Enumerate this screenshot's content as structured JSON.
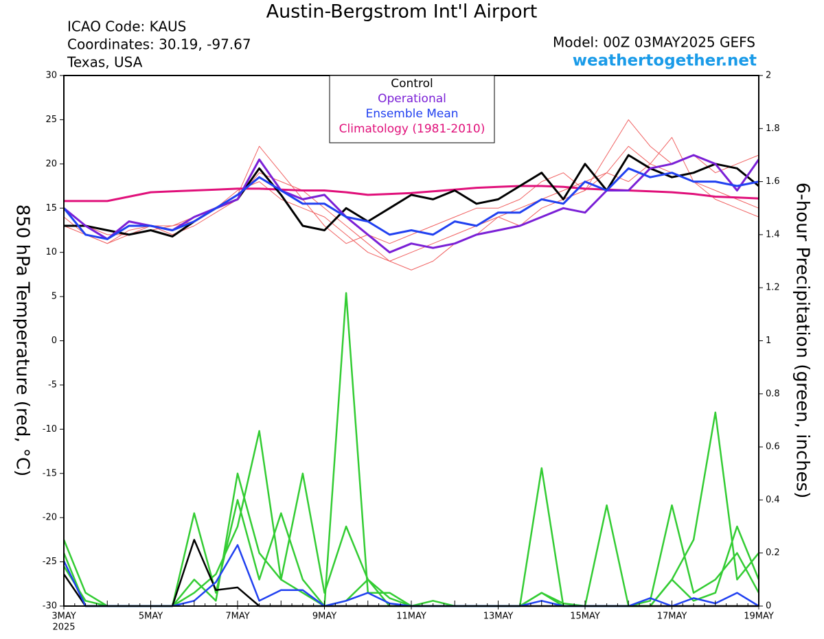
{
  "header": {
    "title": "Austin-Bergstrom Int'l Airport",
    "icao": "ICAO Code: KAUS",
    "coordinates": "Coordinates: 30.19, -97.67",
    "location": "Texas, USA",
    "model": "Model: 00Z 03MAY2025 GEFS",
    "site": "weathertogether.net"
  },
  "chart_data": {
    "type": "line",
    "ylabel": "850 hPa Temperature (red, °C)",
    "y2label": "6-hour Precipitation (green, inches)",
    "x": [
      0,
      0.5,
      1,
      1.5,
      2,
      2.5,
      3,
      3.5,
      4,
      4.5,
      5,
      5.5,
      6,
      6.5,
      7,
      7.5,
      8,
      8.5,
      9,
      9.5,
      10,
      10.5,
      11,
      11.5,
      12,
      12.5,
      13,
      13.5,
      14,
      14.5,
      15,
      15.5,
      16
    ],
    "xlim": [
      0,
      16
    ],
    "xticks": [
      {
        "value": 0,
        "label": "3MAY"
      },
      {
        "value": 2,
        "label": "5MAY"
      },
      {
        "value": 4,
        "label": "7MAY"
      },
      {
        "value": 6,
        "label": "9MAY"
      },
      {
        "value": 8,
        "label": "11MAY"
      },
      {
        "value": 10,
        "label": "13MAY"
      },
      {
        "value": 12,
        "label": "15MAY"
      },
      {
        "value": 14,
        "label": "17MAY"
      },
      {
        "value": 16,
        "label": "19MAY"
      }
    ],
    "x_sublabel": "2025",
    "ylim": [
      -30,
      30
    ],
    "yticks": [
      -30,
      -25,
      -20,
      -15,
      -10,
      -5,
      0,
      5,
      10,
      15,
      20,
      25,
      30
    ],
    "y2lim": [
      0,
      2
    ],
    "y2ticks": [
      0,
      0.2,
      0.4,
      0.6,
      0.8,
      1,
      1.2,
      1.4,
      1.6,
      1.8,
      2
    ],
    "series": [
      {
        "color": "#f06060",
        "axis": "y",
        "values": [
          14,
          12,
          11,
          12.5,
          13,
          12,
          13,
          14.5,
          16,
          19,
          18,
          17,
          15,
          13,
          11,
          9,
          10,
          11,
          12,
          13,
          14,
          15,
          16,
          17,
          18,
          19,
          22,
          20,
          19,
          18,
          17,
          16,
          15
        ]
      },
      {
        "color": "#f06060",
        "axis": "y",
        "values": [
          15,
          13,
          12,
          12,
          12.5,
          13,
          14,
          15,
          17,
          18,
          16,
          15,
          14,
          12,
          10,
          9,
          8,
          9,
          11,
          12,
          14,
          13,
          15,
          16,
          17,
          19,
          18,
          20,
          23,
          18,
          16,
          15,
          14
        ]
      },
      {
        "color": "#f06060",
        "axis": "y",
        "values": [
          13,
          12,
          11,
          12,
          13,
          13,
          13.5,
          15,
          16.5,
          22,
          19,
          16,
          13,
          11,
          12,
          11,
          12,
          13,
          14,
          15,
          15,
          16,
          18,
          19,
          17,
          21,
          25,
          22,
          20,
          21,
          19,
          20,
          21
        ]
      },
      {
        "color": "#33cc33",
        "axis": "y2",
        "values": [
          0.25,
          0.05,
          0,
          0,
          0,
          0,
          0.05,
          0.12,
          0.3,
          0.66,
          0.1,
          0.05,
          0,
          0.02,
          0.1,
          0.03,
          0,
          0,
          0,
          0,
          0,
          0,
          0.05,
          0.01,
          0,
          0,
          0,
          0,
          0.1,
          0.02,
          0.05,
          0.3,
          0.1
        ]
      },
      {
        "color": "#33cc33",
        "axis": "y2",
        "values": [
          0.2,
          0,
          0,
          0,
          0,
          0,
          0.35,
          0.05,
          0.4,
          0.1,
          0.35,
          0.1,
          0,
          1.18,
          0.05,
          0.05,
          0,
          0.02,
          0,
          0,
          0,
          0,
          0.52,
          0,
          0,
          0,
          0,
          0.02,
          0.38,
          0.05,
          0.1,
          0.2,
          0.05
        ]
      },
      {
        "color": "#33cc33",
        "axis": "y2",
        "values": [
          0.15,
          0.02,
          0,
          0,
          0,
          0,
          0.1,
          0.02,
          0.5,
          0.2,
          0.1,
          0.5,
          0.05,
          0.3,
          0.1,
          0,
          0,
          0,
          0,
          0,
          0,
          0,
          0.05,
          0,
          0,
          0.38,
          0,
          0,
          0.1,
          0.25,
          0.73,
          0.1,
          0.2
        ]
      },
      {
        "color": "#000000",
        "axis": "y2",
        "values": [
          0.12,
          0,
          0,
          0,
          0,
          0,
          0.25,
          0.06,
          0.07,
          0,
          0,
          0,
          0,
          0,
          0,
          0,
          0,
          0,
          0,
          0,
          0,
          0,
          0,
          0,
          0,
          0,
          0,
          0,
          0,
          0,
          0,
          0,
          0
        ]
      },
      {
        "color": "#2040f0",
        "axis": "y2",
        "values": [
          0.17,
          0,
          0,
          0,
          0,
          0,
          0.02,
          0.09,
          0.23,
          0.02,
          0.06,
          0.06,
          0,
          0.02,
          0.05,
          0.01,
          0,
          0,
          0,
          0,
          0,
          0,
          0.02,
          0,
          0,
          0,
          0,
          0.03,
          0,
          0.03,
          0.01,
          0.05,
          0
        ]
      },
      {
        "name": "Climatology (1981-2010)",
        "color": "#e0107a",
        "axis": "y",
        "values": [
          15.8,
          15.8,
          15.8,
          16.3,
          16.8,
          16.9,
          17,
          17.1,
          17.2,
          17.2,
          17.1,
          17,
          17,
          16.8,
          16.5,
          16.6,
          16.7,
          16.9,
          17.1,
          17.3,
          17.4,
          17.5,
          17.5,
          17.4,
          17.2,
          17.1,
          17,
          16.9,
          16.8,
          16.6,
          16.3,
          16.2,
          16.1
        ]
      },
      {
        "name": "Control",
        "color": "#000000",
        "axis": "y",
        "values": [
          13,
          13,
          12.5,
          12,
          12.5,
          11.8,
          13.5,
          15,
          16,
          19.5,
          16.5,
          13,
          12.5,
          15,
          13.5,
          15,
          16.5,
          16,
          17,
          15.5,
          16,
          17.5,
          19,
          16,
          20,
          17,
          21,
          19.5,
          18.5,
          19,
          20,
          19.5,
          17.5
        ]
      },
      {
        "name": "Operational",
        "color": "#7a1fd6",
        "axis": "y",
        "values": [
          15,
          13,
          11.5,
          13.5,
          13,
          12.5,
          14,
          15,
          16,
          20.5,
          17,
          16,
          16.5,
          14,
          12,
          10,
          11,
          10.5,
          11,
          12,
          12.5,
          13,
          14,
          15,
          14.5,
          17,
          17,
          19.5,
          20,
          21,
          20,
          17,
          20.5
        ]
      },
      {
        "name": "Ensemble Mean",
        "color": "#2040f0",
        "axis": "y",
        "values": [
          15,
          12,
          11.5,
          13,
          13,
          12.5,
          13.5,
          15,
          16.5,
          18.5,
          17,
          15.5,
          15.5,
          14,
          13.5,
          12,
          12.5,
          12,
          13.5,
          13,
          14.5,
          14.5,
          16,
          15.5,
          18,
          17,
          19.5,
          18.5,
          19,
          18,
          18,
          17.5,
          18
        ]
      }
    ]
  }
}
